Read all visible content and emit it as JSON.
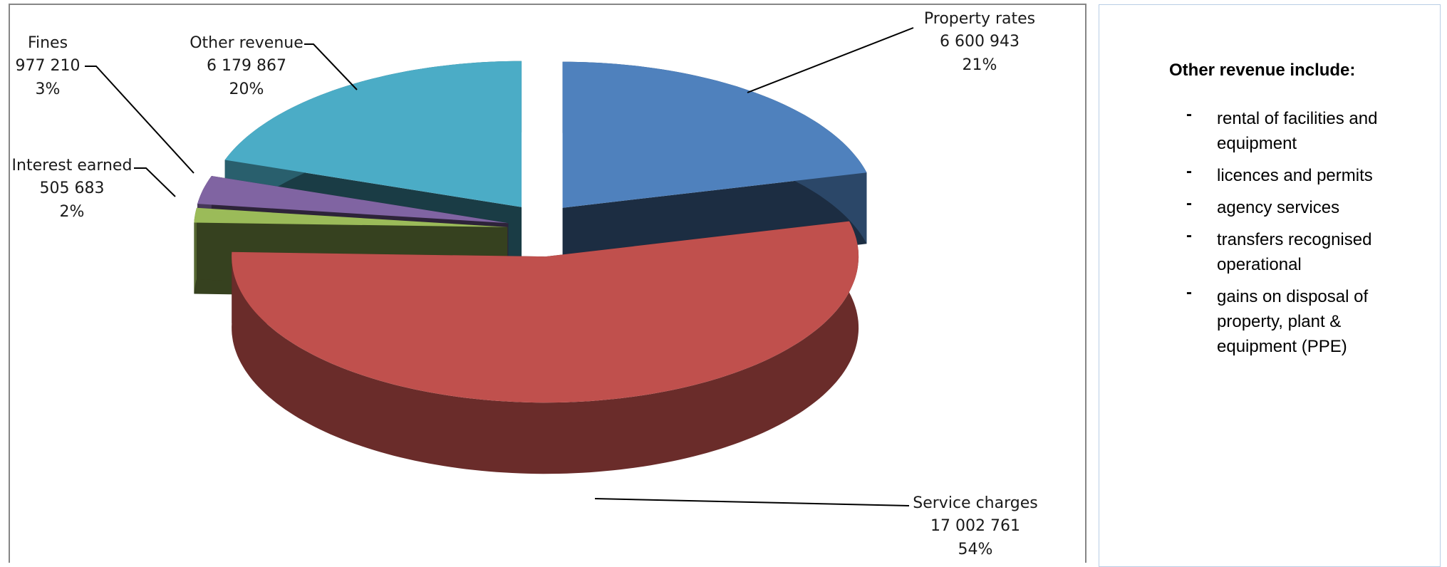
{
  "chart_data": {
    "type": "pie3d",
    "categories": [
      "Property rates",
      "Service charges",
      "Interest earned",
      "Fines",
      "Other revenue"
    ],
    "values": [
      6600943,
      17002761,
      505683,
      977210,
      6179867
    ],
    "value_labels": [
      "6 600 943",
      "17 002 761",
      "505 683",
      "977 210",
      "6 179 867"
    ],
    "percent_labels": [
      "21%",
      "54%",
      "2%",
      "3%",
      "20%"
    ],
    "colors": [
      "#4f81bd",
      "#c0504d",
      "#9bbb59",
      "#8064a2",
      "#4bacc6"
    ]
  },
  "notes": {
    "title": "Other revenue include:",
    "items": [
      "rental of facilities and equipment",
      "licences and permits",
      "agency services",
      "transfers recognised operational",
      "gains on disposal of property, plant & equipment (PPE)"
    ]
  }
}
